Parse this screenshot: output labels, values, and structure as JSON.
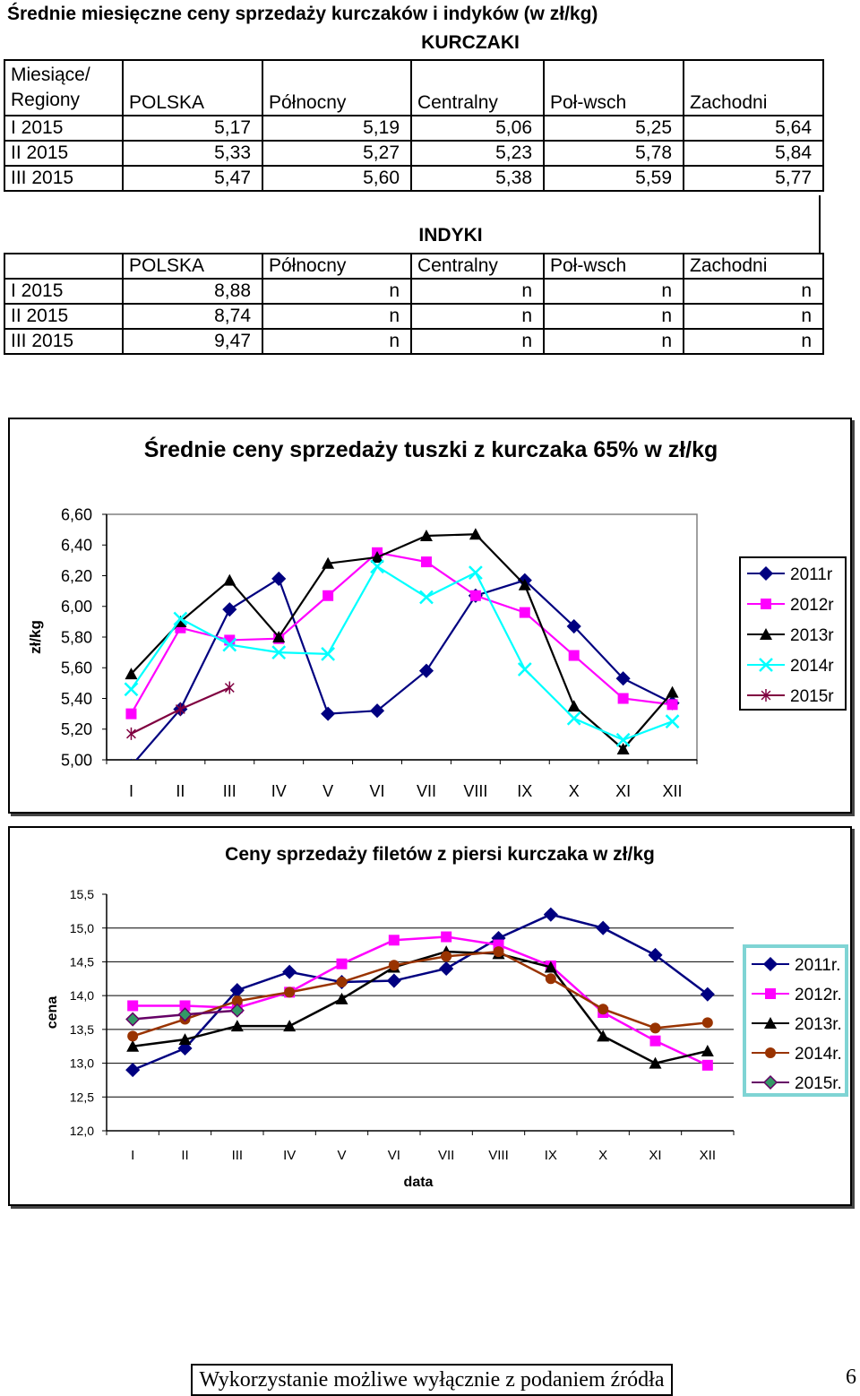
{
  "title": "Średnie miesięczne ceny sprzedaży kurczaków  i indyków (w zł/kg)",
  "kurczaki": {
    "section_title": "KURCZAKI",
    "header_line1": "Miesiące/",
    "header_line2": "Regiony",
    "columns": [
      "POLSKA",
      "Północny",
      "Centralny",
      "Poł-wsch",
      "Zachodni"
    ],
    "rows": [
      {
        "label": "I 2015",
        "values": [
          "5,17",
          "5,19",
          "5,06",
          "5,25",
          "5,64"
        ]
      },
      {
        "label": "II 2015",
        "values": [
          "5,33",
          "5,27",
          "5,23",
          "5,78",
          "5,84"
        ]
      },
      {
        "label": "III 2015",
        "values": [
          "5,47",
          "5,60",
          "5,38",
          "5,59",
          "5,77"
        ]
      }
    ]
  },
  "indyki": {
    "section_title": "INDYKI",
    "columns": [
      "POLSKA",
      "Północny",
      "Centralny",
      "Poł-wsch",
      "Zachodni"
    ],
    "rows": [
      {
        "label": "I 2015",
        "values": [
          "8,88",
          "n",
          "n",
          "n",
          "n"
        ]
      },
      {
        "label": "II 2015",
        "values": [
          "8,74",
          "n",
          "n",
          "n",
          "n"
        ]
      },
      {
        "label": "III 2015",
        "values": [
          "9,47",
          "n",
          "n",
          "n",
          "n"
        ]
      }
    ]
  },
  "chart_data": [
    {
      "type": "line",
      "title": "Średnie ceny sprzedaży tuszki z kurczaka 65% w zł/kg",
      "xlabel": "",
      "ylabel": "zł/kg",
      "ylim": [
        5.0,
        6.6
      ],
      "yticks": [
        "6,60",
        "6,40",
        "6,20",
        "6,00",
        "5,80",
        "5,60",
        "5,40",
        "5,20",
        "5,00"
      ],
      "categories": [
        "I",
        "II",
        "III",
        "IV",
        "V",
        "VI",
        "VII",
        "VIII",
        "IX",
        "X",
        "XI",
        "XII"
      ],
      "legend_position": "right",
      "grid": false,
      "series": [
        {
          "name": "2011r",
          "color": "#000080",
          "marker": "diamond",
          "values": [
            4.96,
            5.33,
            5.98,
            6.18,
            5.3,
            5.32,
            5.58,
            6.07,
            6.17,
            5.87,
            5.53,
            5.37
          ]
        },
        {
          "name": "2012r",
          "color": "#ff00ff",
          "marker": "square",
          "values": [
            5.3,
            5.86,
            5.78,
            5.79,
            6.07,
            6.35,
            6.29,
            6.07,
            5.96,
            5.68,
            5.4,
            5.36
          ]
        },
        {
          "name": "2013r",
          "color": "#000000",
          "marker": "triangle",
          "values": [
            5.56,
            5.9,
            6.17,
            5.8,
            6.28,
            6.32,
            6.46,
            6.47,
            6.14,
            5.35,
            5.07,
            5.44
          ]
        },
        {
          "name": "2014r",
          "color": "#00ffff",
          "marker": "x",
          "values": [
            5.46,
            5.92,
            5.75,
            5.7,
            5.69,
            6.26,
            6.06,
            6.22,
            5.59,
            5.27,
            5.13,
            5.25
          ]
        },
        {
          "name": "2015r",
          "color": "#800040",
          "marker": "star",
          "values": [
            5.17,
            5.33,
            5.47,
            null,
            null,
            null,
            null,
            null,
            null,
            null,
            null,
            null
          ]
        }
      ]
    },
    {
      "type": "line",
      "title": "Ceny sprzedaży filetów z piersi kurczaka w zł/kg",
      "xlabel": "data",
      "ylabel": "cena",
      "ylim": [
        12.0,
        15.5
      ],
      "yticks": [
        "15,5",
        "15,0",
        "14,5",
        "14,0",
        "13,5",
        "13,0",
        "12,5",
        "12,0"
      ],
      "categories": [
        "I",
        "II",
        "III",
        "IV",
        "V",
        "VI",
        "VII",
        "VIII",
        "IX",
        "X",
        "XI",
        "XII"
      ],
      "legend_position": "right",
      "grid": true,
      "series": [
        {
          "name": "2011r.",
          "color": "#000080",
          "marker": "diamond",
          "values": [
            12.9,
            13.22,
            14.08,
            14.35,
            14.2,
            14.22,
            14.4,
            14.85,
            15.2,
            15.0,
            14.6,
            14.02
          ]
        },
        {
          "name": "2012r.",
          "color": "#ff00ff",
          "marker": "square",
          "values": [
            13.85,
            13.85,
            13.82,
            14.05,
            14.47,
            14.82,
            14.87,
            14.75,
            14.44,
            13.75,
            13.33,
            12.97
          ]
        },
        {
          "name": "2013r.",
          "color": "#000000",
          "marker": "triangle",
          "values": [
            13.25,
            13.35,
            13.55,
            13.55,
            13.95,
            14.42,
            14.65,
            14.62,
            14.42,
            13.4,
            13.0,
            13.18
          ]
        },
        {
          "name": "2014r.",
          "color": "#993300",
          "marker": "circle",
          "values": [
            13.4,
            13.65,
            13.92,
            14.05,
            14.2,
            14.45,
            14.58,
            14.65,
            14.25,
            13.8,
            13.52,
            13.6
          ]
        },
        {
          "name": "2015r.",
          "color": "#660066",
          "fill": "#339966",
          "marker": "diamond",
          "values": [
            13.65,
            13.72,
            13.78,
            null,
            null,
            null,
            null,
            null,
            null,
            null,
            null,
            null
          ]
        }
      ]
    }
  ],
  "footer": {
    "text": "Wykorzystanie możliwe wyłącznie z podaniem źródła",
    "page_number": "6"
  }
}
